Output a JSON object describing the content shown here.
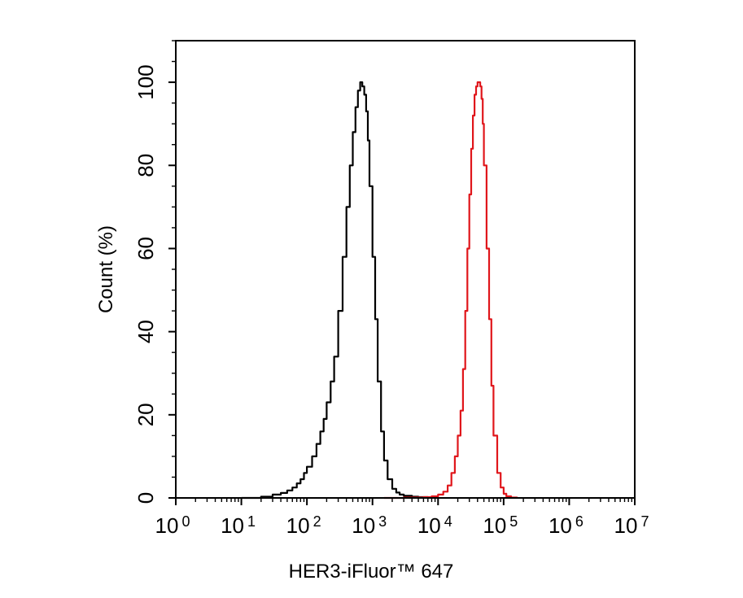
{
  "chart_data": {
    "type": "line",
    "xlabel": "HER3-iFluor™ 647",
    "ylabel": "Count  (%)",
    "x_scale": "log10",
    "xlim": [
      1,
      10000000
    ],
    "ylim": [
      0,
      110
    ],
    "x_ticks": [
      {
        "base": "10",
        "exp": "0",
        "value": 1
      },
      {
        "base": "10",
        "exp": "1",
        "value": 10
      },
      {
        "base": "10",
        "exp": "2",
        "value": 100
      },
      {
        "base": "10",
        "exp": "3",
        "value": 1000
      },
      {
        "base": "10",
        "exp": "4",
        "value": 10000
      },
      {
        "base": "10",
        "exp": "5",
        "value": 100000
      },
      {
        "base": "10",
        "exp": "6",
        "value": 1000000
      },
      {
        "base": "10",
        "exp": "7",
        "value": 10000000
      }
    ],
    "y_ticks": [
      0,
      20,
      40,
      60,
      80,
      100
    ],
    "grid": false,
    "legend": "none",
    "series": [
      {
        "color": "#000000",
        "x": [
          10,
          20,
          30,
          40,
          50,
          60,
          70,
          80,
          90,
          100,
          120,
          140,
          160,
          180,
          200,
          230,
          260,
          300,
          350,
          400,
          450,
          500,
          550,
          600,
          650,
          700,
          750,
          800,
          850,
          900,
          1000,
          1100,
          1200,
          1350,
          1500,
          1700,
          2000,
          2300,
          2600,
          3000,
          4000,
          5000,
          7000,
          10000
        ],
        "y": [
          0,
          0.3,
          0.8,
          1.2,
          1.8,
          2.5,
          3.5,
          4.5,
          6,
          7.5,
          10,
          13,
          16,
          19,
          23,
          28,
          34,
          45,
          58,
          70,
          80,
          88,
          94,
          98,
          100,
          99,
          97,
          93,
          86,
          75,
          58,
          43,
          28,
          16,
          9,
          4.5,
          2.2,
          1.3,
          0.8,
          0.5,
          0.3,
          0.2,
          0.1,
          0
        ]
      },
      {
        "color": "#e0161b",
        "x": [
          1500,
          3000,
          6000,
          8000,
          10000,
          12000,
          14000,
          16000,
          18000,
          20000,
          22000,
          24000,
          26000,
          28000,
          30000,
          32000,
          34000,
          36000,
          38000,
          40000,
          42000,
          44000,
          46000,
          48000,
          50000,
          55000,
          60000,
          65000,
          70000,
          80000,
          90000,
          100000,
          110000,
          130000,
          160000
        ],
        "y": [
          0,
          0.1,
          0.2,
          0.4,
          0.8,
          1.5,
          3,
          6,
          10,
          15,
          21,
          31,
          45,
          60,
          73,
          84,
          92,
          97,
          99,
          100,
          100,
          99,
          96,
          90,
          80,
          60,
          43,
          27,
          15,
          6,
          2.5,
          1,
          0.4,
          0.1,
          0
        ]
      }
    ]
  }
}
